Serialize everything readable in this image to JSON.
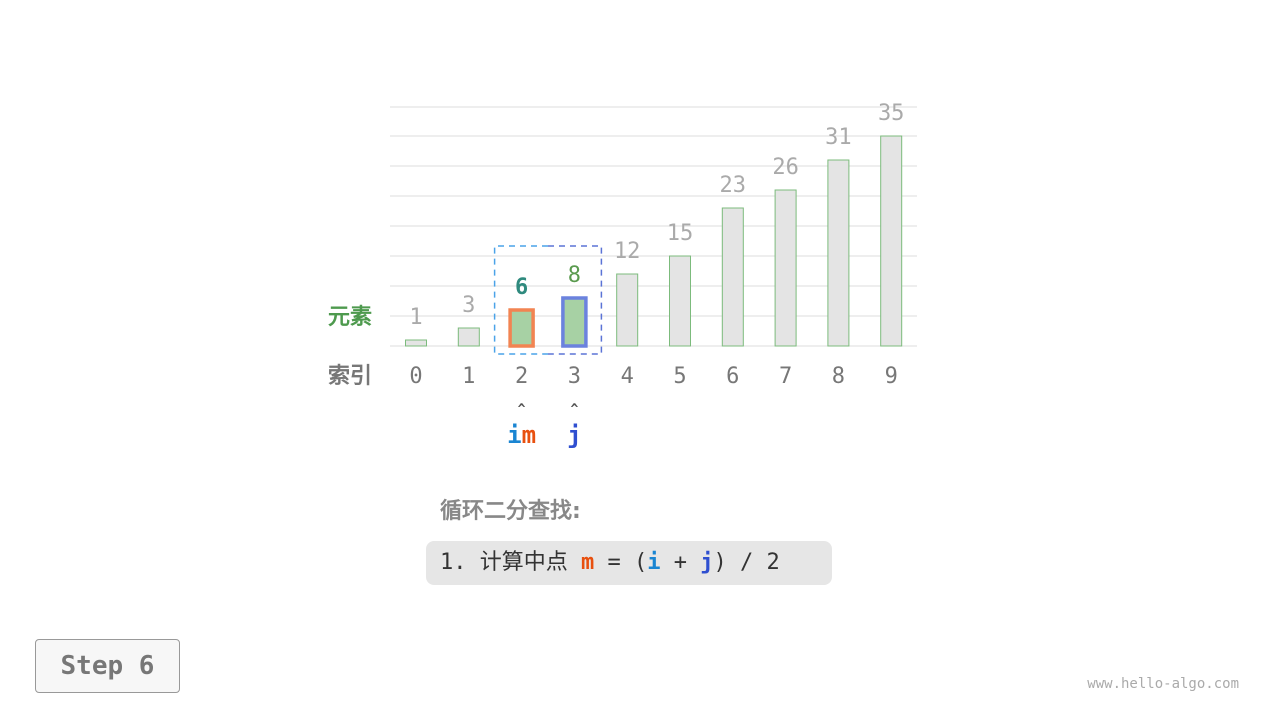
{
  "diagram": {
    "row_labels": {
      "elements": "元素",
      "indices": "索引"
    },
    "values": [
      1,
      3,
      6,
      8,
      12,
      15,
      23,
      26,
      31,
      35
    ],
    "indices": [
      "0",
      "1",
      "2",
      "3",
      "4",
      "5",
      "6",
      "7",
      "8",
      "9"
    ],
    "pointers": [
      {
        "index": 2,
        "parts": [
          {
            "text": "i",
            "color": "#1a85d2"
          },
          {
            "text": "m",
            "color": "#e8500f"
          }
        ]
      },
      {
        "index": 3,
        "parts": [
          {
            "text": "j",
            "color": "#2f4fd0"
          }
        ]
      }
    ],
    "search_range": [
      2,
      3
    ],
    "highlight": {
      "m": 2,
      "j": 3
    },
    "colors": {
      "bar_fill": "#e4e4e4",
      "bar_stroke": "#7cbb7c",
      "active_fill": "#a7d1a4",
      "m_border": "#f28452",
      "j_border": "#6b82de",
      "grid": "#dddddd",
      "label_gray": "#aaaaaa",
      "m_value": "#2f8a7e",
      "j_value": "#5a9a4e",
      "row_label_green": "#4e9a4e"
    }
  },
  "text": {
    "title": "循环二分查找:",
    "formula": {
      "prefix": "1. 计算中点 ",
      "m": "m",
      "eq": " = (",
      "i": "i",
      "plus": " + ",
      "j": "j",
      "suffix": ") / 2"
    },
    "step": "Step 6",
    "watermark": "www.hello-algo.com"
  }
}
